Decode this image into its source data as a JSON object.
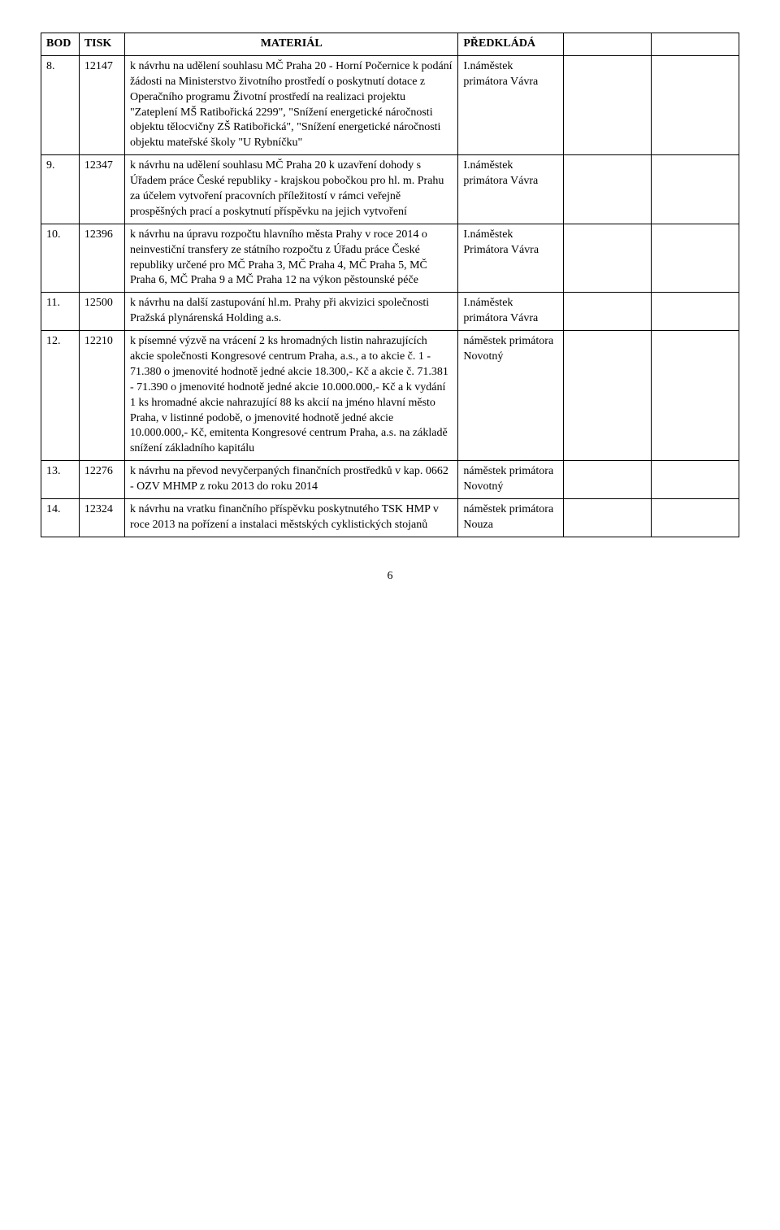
{
  "headers": {
    "bod": "BOD",
    "tisk": "TISK",
    "material": "MATERIÁL",
    "predklada": "PŘEDKLÁDÁ"
  },
  "rows": [
    {
      "bod": "8.",
      "tisk": "12147",
      "material": "k návrhu na udělení souhlasu MČ Praha 20 - Horní Počernice k podání žádosti na Ministerstvo životního prostředí o poskytnutí dotace z Operačního programu Životní prostředí na realizaci projektu \"Zateplení MŠ Ratibořická 2299\", \"Snížení energetické náročnosti objektu tělocvičny ZŠ Ratibořická\", \"Snížení energetické náročnosti objektu mateřské školy \"U Rybníčku\"",
      "predklada": "I.náměstek primátora Vávra"
    },
    {
      "bod": "9.",
      "tisk": "12347",
      "material": "k návrhu na udělení souhlasu MČ Praha 20 k uzavření dohody s Úřadem práce České republiky - krajskou pobočkou pro hl. m. Prahu za účelem vytvoření pracovních příležitostí v rámci veřejně prospěšných prací a poskytnutí příspěvku na jejich vytvoření",
      "predklada": "I.náměstek primátora Vávra"
    },
    {
      "bod": "10.",
      "tisk": "12396",
      "material": "k návrhu na úpravu rozpočtu hlavního města Prahy v roce 2014 o neinvestiční transfery ze státního rozpočtu z Úřadu práce České republiky určené pro MČ Praha 3, MČ Praha 4, MČ Praha 5, MČ Praha 6, MČ Praha 9 a MČ Praha 12 na výkon pěstounské péče",
      "predklada": "I.náměstek Primátora Vávra"
    },
    {
      "bod": "11.",
      "tisk": "12500",
      "material": "k návrhu na další zastupování hl.m. Prahy při akvizici společnosti Pražská plynárenská Holding a.s.",
      "predklada": "I.náměstek primátora Vávra"
    },
    {
      "bod": "12.",
      "tisk": "12210",
      "material": "k písemné výzvě na vrácení  2 ks hromadných listin nahrazujících akcie společnosti Kongresové centrum Praha, a.s., a to akcie č. 1 - 71.380 o jmenovité hodnotě jedné akcie 18.300,- Kč a akcie č. 71.381 -  71.390 o jmenovité hodnotě jedné akcie 10.000.000,- Kč a k vydání 1 ks hromadné akcie nahrazující 88 ks akcií na jméno hlavní město Praha, v listinné podobě, o jmenovité hodnotě jedné akcie 10.000.000,- Kč, emitenta Kongresové centrum Praha, a.s. na základě snížení základního kapitálu",
      "predklada": "náměstek primátora Novotný"
    },
    {
      "bod": "13.",
      "tisk": "12276",
      "material": "k návrhu na převod nevyčerpaných finančních prostředků v kap. 0662 - OZV MHMP z roku 2013 do roku 2014",
      "predklada": "náměstek primátora Novotný"
    },
    {
      "bod": "14.",
      "tisk": "12324",
      "material": "k návrhu na vratku finančního příspěvku poskytnutého TSK HMP v roce 2013 na pořízení a instalaci městských cyklistických stojanů",
      "predklada": "náměstek primátora Nouza"
    }
  ],
  "pageNumber": "6"
}
